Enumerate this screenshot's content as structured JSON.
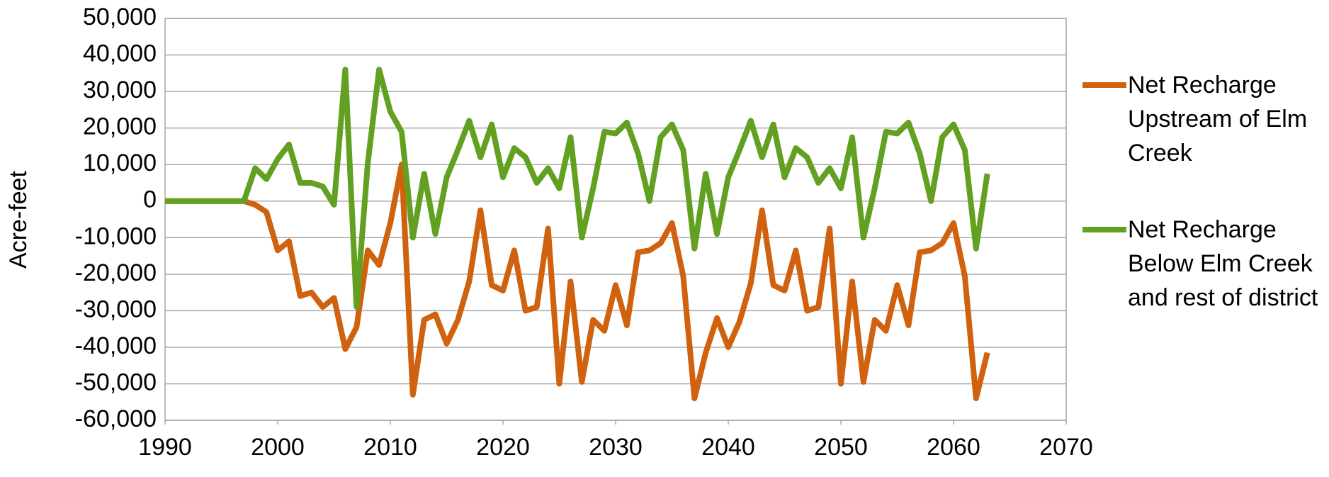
{
  "chart_data": {
    "type": "line",
    "y_label": "Acre-feet",
    "x": [
      1990,
      1991,
      1992,
      1993,
      1994,
      1995,
      1996,
      1997,
      1998,
      1999,
      2000,
      2001,
      2002,
      2003,
      2004,
      2005,
      2006,
      2007,
      2008,
      2009,
      2010,
      2011,
      2012,
      2013,
      2014,
      2015,
      2016,
      2017,
      2018,
      2019,
      2020,
      2021,
      2022,
      2023,
      2024,
      2025,
      2026,
      2027,
      2028,
      2029,
      2030,
      2031,
      2032,
      2033,
      2034,
      2035,
      2036,
      2037,
      2038,
      2039,
      2040,
      2041,
      2042,
      2043,
      2044,
      2045,
      2046,
      2047,
      2048,
      2049,
      2050,
      2051,
      2052,
      2053,
      2054,
      2055,
      2056,
      2057,
      2058,
      2059,
      2060,
      2061,
      2062,
      2063
    ],
    "series": [
      {
        "name": "Net Recharge Upstream of Elm Creek",
        "color": "#d0620f",
        "values": [
          0,
          0,
          0,
          0,
          0,
          0,
          0,
          0,
          -1000,
          -3000,
          -13500,
          -11000,
          -26000,
          -25000,
          -29000,
          -26500,
          -40500,
          -34500,
          -13500,
          -17500,
          -6000,
          10000,
          -53000,
          -32500,
          -31000,
          -39000,
          -32500,
          -22000,
          -2500,
          -23000,
          -24500,
          -13500,
          -30000,
          -29000,
          -7500,
          -50000,
          -22000,
          -49500,
          -32500,
          -35500,
          -23000,
          -34000,
          -14000,
          -13500,
          -11500,
          -6000,
          -20500,
          -54000,
          -41500,
          -32000,
          -40000,
          -33000,
          -22500,
          -2500,
          -23000,
          -24500,
          -13500,
          -30000,
          -29000,
          -7500,
          -50000,
          -22000,
          -49500,
          -32500,
          -35500,
          -23000,
          -34000,
          -14000,
          -13500,
          -11500,
          -6000,
          -20500,
          -54000,
          -41500
        ]
      },
      {
        "name": "Net Recharge Below Elm Creek and rest of district",
        "color": "#62a021",
        "values": [
          0,
          0,
          0,
          0,
          0,
          0,
          0,
          0,
          9000,
          6000,
          11500,
          15500,
          5000,
          5000,
          4000,
          -1000,
          36000,
          -29000,
          10500,
          36000,
          24500,
          19000,
          -10000,
          7500,
          -9000,
          6500,
          14000,
          22000,
          12000,
          21000,
          6500,
          14500,
          12000,
          5000,
          9000,
          3500,
          17500,
          -10000,
          3500,
          19000,
          18500,
          21500,
          13000,
          0,
          17500,
          21000,
          14000,
          -13000,
          7500,
          -9000,
          6500,
          14000,
          22000,
          12000,
          21000,
          6500,
          14500,
          12000,
          5000,
          9000,
          3500,
          17500,
          -10000,
          3500,
          19000,
          18500,
          21500,
          13000,
          0,
          17500,
          21000,
          14000,
          -13000,
          7500
        ]
      }
    ],
    "xlim": [
      1990,
      2070
    ],
    "xticks": [
      1990,
      2000,
      2010,
      2020,
      2030,
      2040,
      2050,
      2060,
      2070
    ],
    "ylim": [
      -60000,
      50000
    ],
    "yticks": [
      {
        "value": -60000,
        "label": "-60,000"
      },
      {
        "value": -50000,
        "label": "-50,000"
      },
      {
        "value": -40000,
        "label": "-40,000"
      },
      {
        "value": -30000,
        "label": "-30,000"
      },
      {
        "value": -20000,
        "label": "-20,000"
      },
      {
        "value": -10000,
        "label": "-10,000"
      },
      0,
      {
        "value": 10000,
        "label": "10,000"
      },
      {
        "value": 20000,
        "label": "20,000"
      },
      {
        "value": 30000,
        "label": "30,000"
      },
      {
        "value": 40000,
        "label": "40,000"
      },
      {
        "value": 50000,
        "label": "50,000"
      }
    ],
    "grid": true,
    "legend": "right"
  }
}
